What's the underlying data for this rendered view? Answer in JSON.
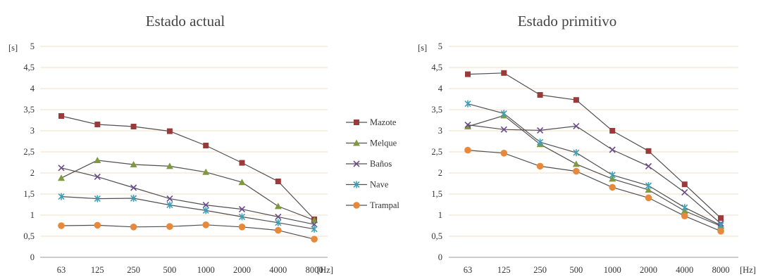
{
  "chart_data": [
    {
      "type": "line",
      "title": "Estado actual",
      "x_unit_label": "[Hz]",
      "y_unit_label": "[s]",
      "categories": [
        "63",
        "125",
        "250",
        "500",
        "1000",
        "2000",
        "4000",
        "8000"
      ],
      "y_ticks": [
        "0",
        "0,5",
        "1",
        "1,5",
        "2",
        "2,5",
        "3",
        "3,5",
        "4",
        "4,5",
        "5"
      ],
      "ylim": [
        0,
        5
      ],
      "grid": true,
      "series": [
        {
          "name": "Mazote",
          "color": "#9b3a3a",
          "marker": "square",
          "values": [
            3.35,
            3.15,
            3.1,
            2.99,
            2.65,
            2.24,
            1.8,
            0.9
          ]
        },
        {
          "name": "Melque",
          "color": "#7f9a3e",
          "marker": "triangle",
          "values": [
            1.88,
            2.3,
            2.2,
            2.16,
            2.02,
            1.78,
            1.21,
            0.88
          ]
        },
        {
          "name": "Baños",
          "color": "#6b4b8a",
          "marker": "x",
          "values": [
            2.12,
            1.91,
            1.65,
            1.39,
            1.24,
            1.14,
            0.96,
            0.78
          ]
        },
        {
          "name": "Nave",
          "color": "#3fa0b8",
          "marker": "star",
          "values": [
            1.44,
            1.39,
            1.4,
            1.24,
            1.11,
            0.96,
            0.82,
            0.67
          ]
        },
        {
          "name": "Trampal",
          "color": "#e8883a",
          "marker": "circle",
          "values": [
            0.75,
            0.76,
            0.72,
            0.73,
            0.77,
            0.72,
            0.64,
            0.43
          ]
        }
      ]
    },
    {
      "type": "line",
      "title": "Estado primitivo",
      "x_unit_label": "[Hz]",
      "y_unit_label": "[s]",
      "categories": [
        "63",
        "125",
        "250",
        "500",
        "1000",
        "2000",
        "4000",
        "8000"
      ],
      "y_ticks": [
        "0",
        "0,5",
        "1",
        "1,5",
        "2",
        "2,5",
        "3",
        "3,5",
        "4",
        "4,5",
        "5"
      ],
      "ylim": [
        0,
        5
      ],
      "grid": true,
      "series": [
        {
          "name": "Mazote",
          "color": "#9b3a3a",
          "marker": "square",
          "values": [
            4.34,
            4.37,
            3.85,
            3.73,
            3.0,
            2.52,
            1.73,
            0.93
          ]
        },
        {
          "name": "Melque",
          "color": "#7f9a3e",
          "marker": "triangle",
          "values": [
            3.1,
            3.36,
            2.68,
            2.21,
            1.86,
            1.6,
            1.1,
            0.74
          ]
        },
        {
          "name": "Baños",
          "color": "#6b4b8a",
          "marker": "x",
          "values": [
            3.14,
            3.03,
            3.01,
            3.11,
            2.55,
            2.16,
            1.54,
            0.8
          ]
        },
        {
          "name": "Nave",
          "color": "#3fa0b8",
          "marker": "star",
          "values": [
            3.64,
            3.41,
            2.73,
            2.48,
            1.95,
            1.7,
            1.18,
            0.76
          ]
        },
        {
          "name": "Trampal",
          "color": "#e8883a",
          "marker": "circle",
          "values": [
            2.54,
            2.47,
            2.16,
            2.04,
            1.66,
            1.41,
            0.98,
            0.62
          ]
        }
      ]
    }
  ],
  "legend": {
    "placement": "between-charts",
    "items": [
      {
        "label": "Mazote",
        "color": "#9b3a3a",
        "marker": "square"
      },
      {
        "label": "Melque",
        "color": "#7f9a3e",
        "marker": "triangle"
      },
      {
        "label": "Baños",
        "color": "#6b4b8a",
        "marker": "x"
      },
      {
        "label": "Nave",
        "color": "#3fa0b8",
        "marker": "star"
      },
      {
        "label": "Trampal",
        "color": "#e8883a",
        "marker": "circle"
      }
    ]
  },
  "style": {
    "grid_color": "#f2dcc4",
    "line_color": "#505050",
    "axis_color": "#999999"
  }
}
